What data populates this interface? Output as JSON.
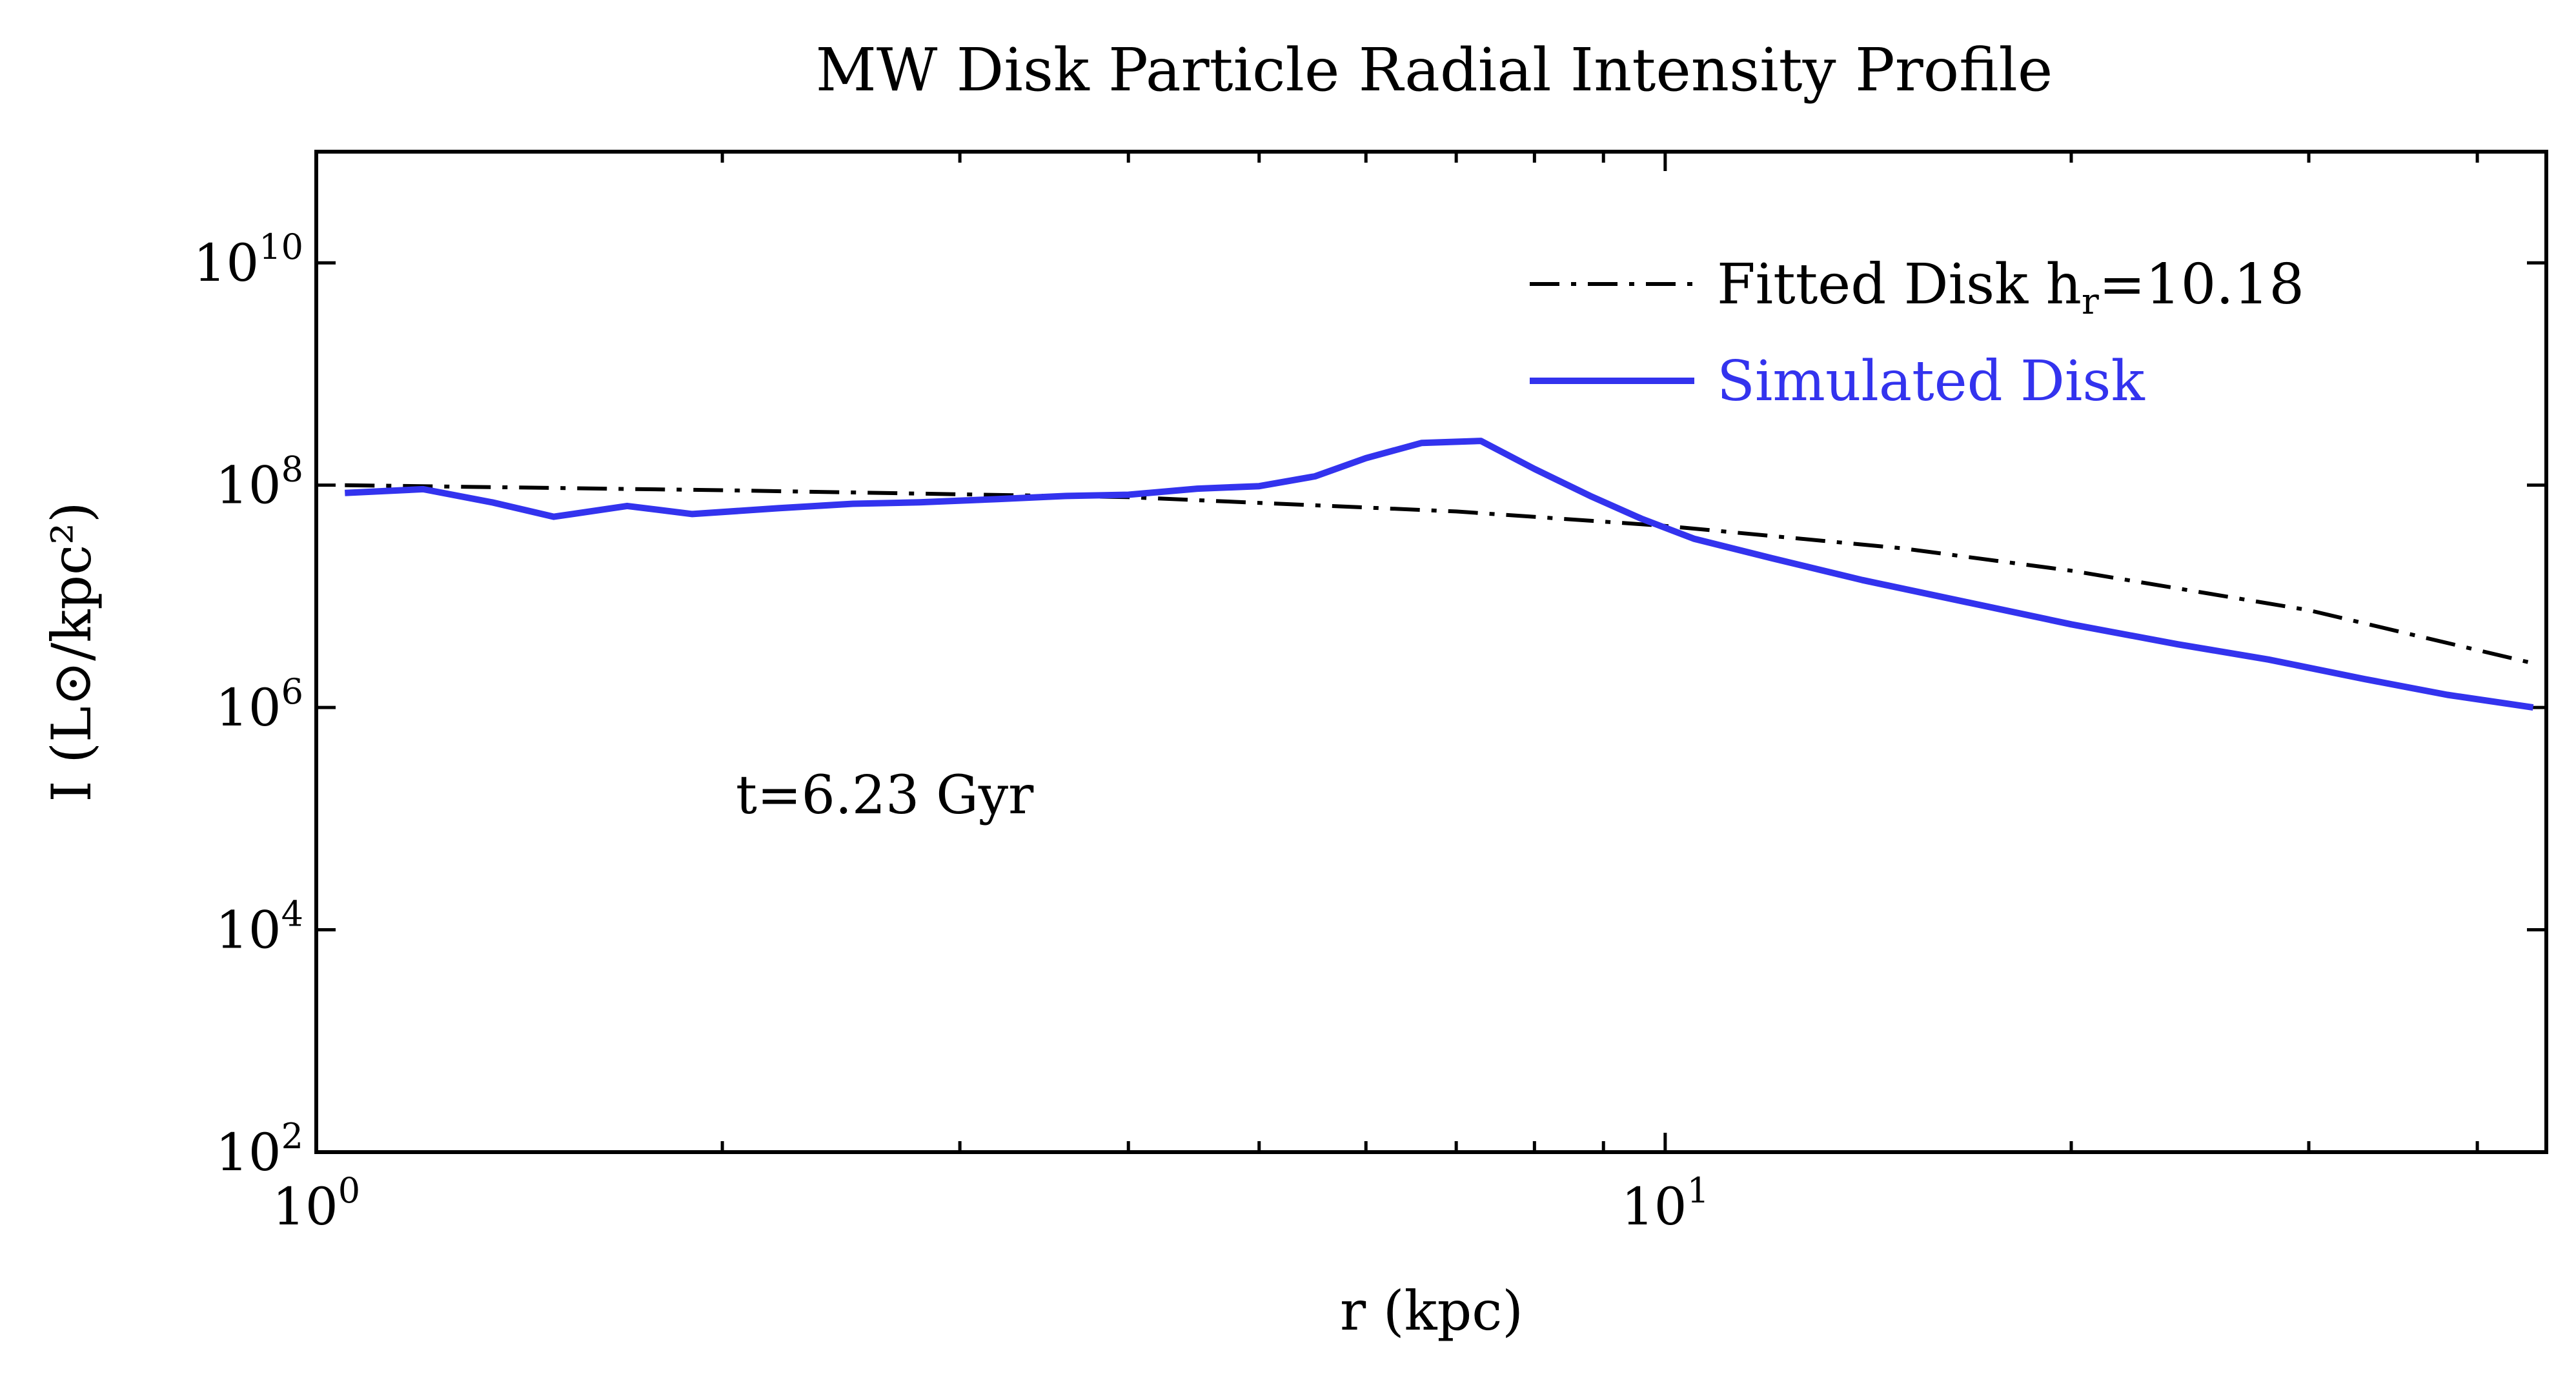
{
  "chart_data": {
    "type": "line",
    "title": "MW Disk Particle Radial Intensity Profile",
    "xlabel": "r (kpc)",
    "ylabel": "I (L⊙/kpc²)",
    "xscale": "log",
    "yscale": "log",
    "xlim": [
      1.0,
      45
    ],
    "ylim": [
      100,
      100000000000
    ],
    "x_tick_labels": [
      {
        "value": 1,
        "base": "10",
        "exp": "0"
      },
      {
        "value": 10,
        "base": "10",
        "exp": "1"
      }
    ],
    "y_tick_labels": [
      {
        "value": 100,
        "base": "10",
        "exp": "2"
      },
      {
        "value": 10000,
        "base": "10",
        "exp": "4"
      },
      {
        "value": 1000000,
        "base": "10",
        "exp": "6"
      },
      {
        "value": 100000000,
        "base": "10",
        "exp": "8"
      },
      {
        "value": 10000000000,
        "base": "10",
        "exp": "10"
      }
    ],
    "annotation": "t=6.23 Gyr",
    "legend_position": "top-right",
    "series": [
      {
        "name": "Fitted Disk h",
        "name_subscript": "r",
        "name_suffix": "=10.18",
        "style": "dashdot",
        "color": "#000000",
        "x": [
          1.05,
          2,
          4,
          7,
          10,
          15,
          20,
          30,
          44
        ],
        "y": [
          100000000,
          90000000,
          78000000,
          58000000,
          43000000,
          27000000,
          17000000,
          7500000,
          2500000
        ]
      },
      {
        "name": "Simulated Disk",
        "style": "solid",
        "color": "#3333ee",
        "x": [
          1.05,
          1.2,
          1.35,
          1.5,
          1.7,
          1.9,
          2.2,
          2.5,
          2.8,
          3.2,
          3.6,
          4.0,
          4.5,
          5.0,
          5.5,
          6.0,
          6.6,
          7.3,
          8.0,
          8.8,
          9.6,
          10.5,
          12,
          14,
          17,
          20,
          24,
          28,
          33,
          38,
          44
        ],
        "y": [
          85000000,
          92000000,
          70000000,
          52000000,
          65000000,
          55000000,
          62000000,
          68000000,
          70000000,
          75000000,
          80000000,
          82000000,
          93000000,
          98000000,
          120000000,
          175000000,
          240000000,
          250000000,
          140000000,
          80000000,
          50000000,
          33000000,
          22000000,
          14000000,
          8500000,
          5600000,
          3700000,
          2700000,
          1800000,
          1300000,
          1000000
        ]
      }
    ],
    "colors": {
      "fitted": "#000000",
      "simulated": "#3333ee",
      "axes": "#000000"
    }
  }
}
